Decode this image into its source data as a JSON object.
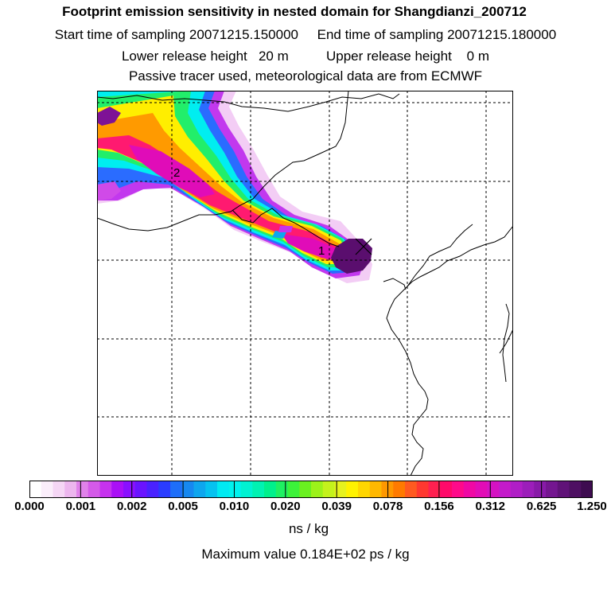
{
  "header": {
    "title": "Footprint emission sensitivity in nested domain for Shangdianzi_200712",
    "sampling": "Start time of sampling 20071215.150000     End time of sampling 20071215.180000",
    "heights": "Lower release height   20 m          Upper release height    0 m",
    "tracer": "Passive tracer used, meteorological data are from ECMWF"
  },
  "map": {
    "point_labels": [
      "2",
      "1"
    ],
    "release_marker": "x-mark-icon"
  },
  "legend": {
    "tick_labels": [
      "0.000",
      "0.001",
      "0.002",
      "0.005",
      "0.010",
      "0.020",
      "0.039",
      "0.078",
      "0.156",
      "0.312",
      "0.625",
      "1.250"
    ],
    "colors": [
      "#ffffff",
      "#fbeefb",
      "#f5d6f5",
      "#ecb6ee",
      "#e082ea",
      "#d45ae8",
      "#c632ee",
      "#aa10f6",
      "#8a10ff",
      "#6a14ff",
      "#4a22ff",
      "#2a3cff",
      "#1e6ef8",
      "#1688f0",
      "#0ea6ee",
      "#06c2f0",
      "#00eaf2",
      "#00f2ee",
      "#00f2d2",
      "#00f2b2",
      "#00f08c",
      "#1ef062",
      "#3cf23a",
      "#6af020",
      "#9cf21a",
      "#c4f21c",
      "#e6f21e",
      "#fff200",
      "#ffd600",
      "#ffb800",
      "#ff9800",
      "#ff7a00",
      "#ff5a20",
      "#ff3830",
      "#ff2050",
      "#ff0a6a",
      "#ff0a8a",
      "#f008a4",
      "#e20cb6",
      "#d412c2",
      "#c41aca",
      "#b01ec6",
      "#9c1eba",
      "#881aa8",
      "#741690",
      "#601278",
      "#4e1062",
      "#3e0c50"
    ],
    "units": "ns / kg",
    "maximum": "Maximum value  0.184E+02 ps / kg"
  }
}
